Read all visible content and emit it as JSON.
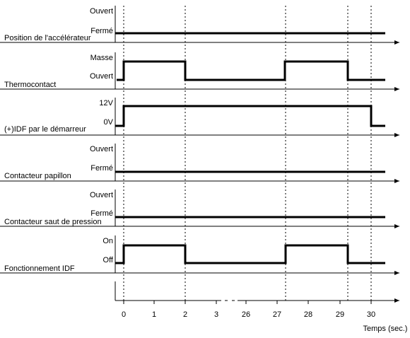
{
  "panels": [
    {
      "label": "Position de l'accélérateur",
      "levels": [
        "Ouvert",
        "Fermé"
      ]
    },
    {
      "label": "Thermocontact",
      "levels": [
        "Masse",
        "Ouvert"
      ]
    },
    {
      "label": "(+)IDF par le démarreur",
      "levels": [
        "12V",
        "0V"
      ]
    },
    {
      "label": "Contacteur papillon",
      "levels": [
        "Ouvert",
        "Fermé"
      ]
    },
    {
      "label": "Contacteur saut de pression",
      "levels": [
        "Ouvert",
        "Fermé"
      ]
    },
    {
      "label": "Fonctionnement IDF",
      "levels": [
        "On",
        "Off"
      ]
    }
  ],
  "time_axis": {
    "ticks": [
      "0",
      "1",
      "2",
      "3",
      "26",
      "27",
      "28",
      "29",
      "30"
    ],
    "label": "Temps (sec.)"
  }
}
